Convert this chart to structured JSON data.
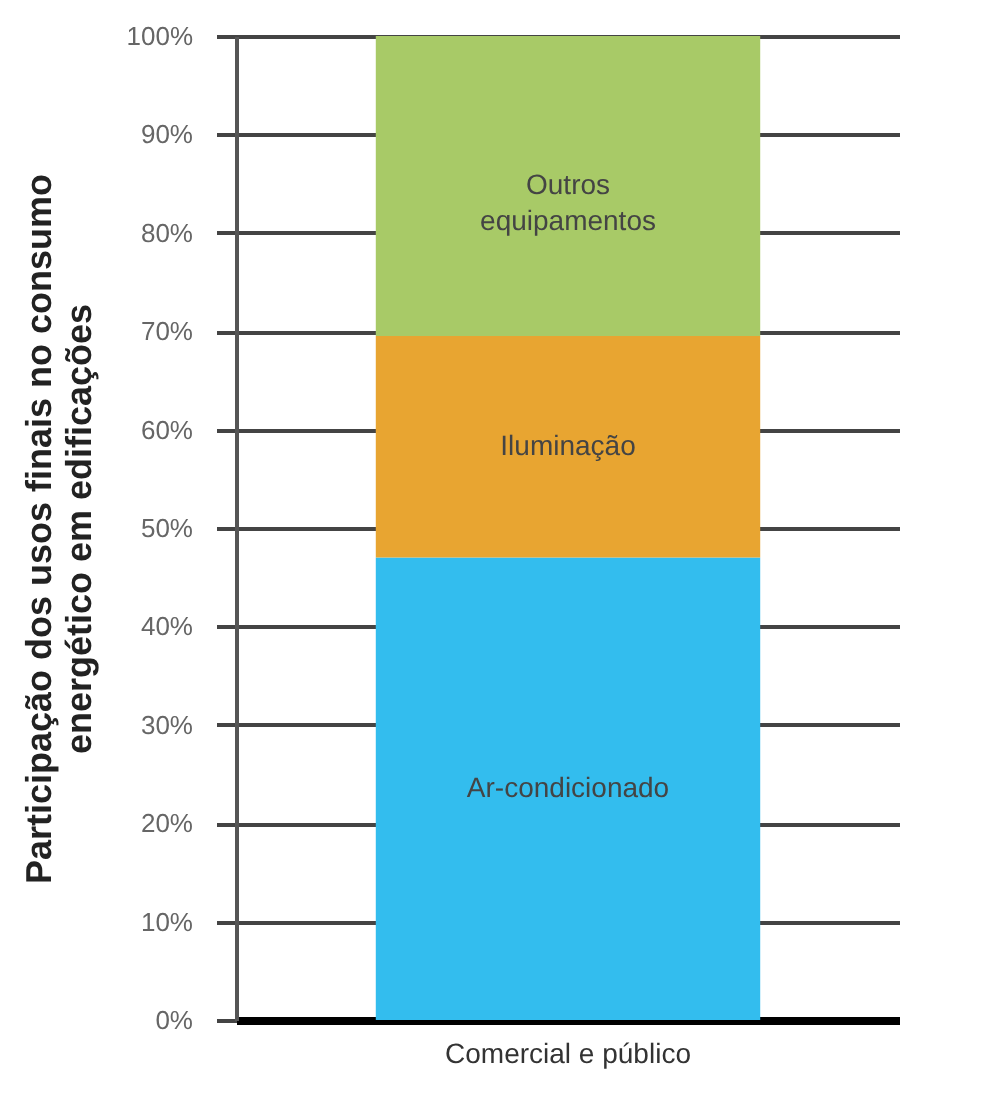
{
  "chart_data": {
    "type": "bar",
    "stacked": true,
    "ylabel": "Participação dos usos finais no consumo energético em edificações",
    "categories": [
      "Comercial e público"
    ],
    "series": [
      {
        "name": "Ar-condicionado",
        "color": "#33bdee",
        "values": [
          47
        ]
      },
      {
        "name": "Iluminação",
        "color": "#e8a531",
        "values": [
          22.5
        ]
      },
      {
        "name": "Outros equipamentos",
        "color": "#a8ca67",
        "values": [
          30.5
        ]
      }
    ],
    "ylim": [
      0,
      100
    ],
    "yticks": [
      {
        "value": 0,
        "label": "0%"
      },
      {
        "value": 10,
        "label": "10%"
      },
      {
        "value": 20,
        "label": "20%"
      },
      {
        "value": 30,
        "label": "30%"
      },
      {
        "value": 40,
        "label": "40%"
      },
      {
        "value": 50,
        "label": "50%"
      },
      {
        "value": 60,
        "label": "60%"
      },
      {
        "value": 70,
        "label": "70%"
      },
      {
        "value": 80,
        "label": "80%"
      },
      {
        "value": 90,
        "label": "90%"
      },
      {
        "value": 100,
        "label": "100%"
      }
    ],
    "grid": "y",
    "legend": false
  }
}
